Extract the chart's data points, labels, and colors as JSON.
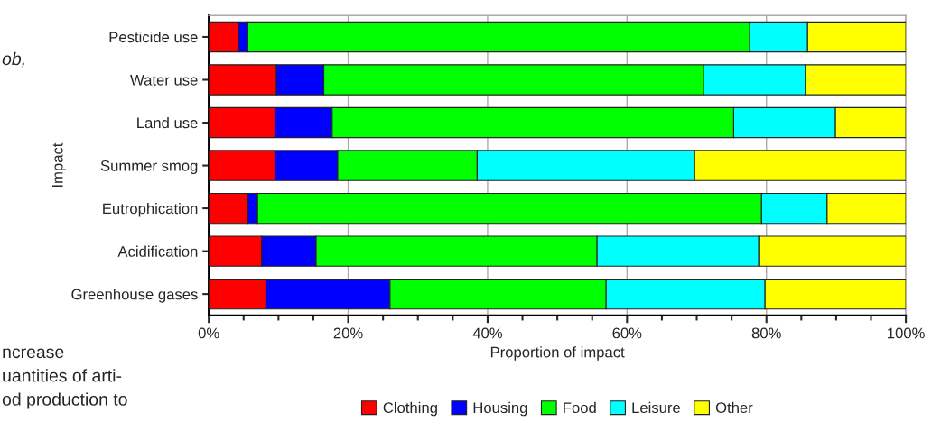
{
  "chart_data": {
    "type": "bar",
    "orientation": "horizontal",
    "stacked": true,
    "categories": [
      "Pesticide use",
      "Water use",
      "Land use",
      "Summer smog",
      "Eutrophication",
      "Acidification",
      "Greenhouse gases"
    ],
    "series": [
      {
        "name": "Clothing",
        "color": "#ff0000",
        "values": [
          4.3,
          9.7,
          9.5,
          9.5,
          5.6,
          7.6,
          8.2
        ]
      },
      {
        "name": "Housing",
        "color": "#0000ff",
        "values": [
          1.3,
          6.8,
          8.2,
          9.0,
          1.4,
          7.8,
          17.8
        ]
      },
      {
        "name": "Food",
        "color": "#00ff00",
        "values": [
          72.0,
          54.5,
          57.6,
          20.0,
          72.3,
          40.3,
          31.0
        ]
      },
      {
        "name": "Leisure",
        "color": "#00ffff",
        "values": [
          8.3,
          14.6,
          14.6,
          31.2,
          9.4,
          23.2,
          22.8
        ]
      },
      {
        "name": "Other",
        "color": "#ffff00",
        "values": [
          14.1,
          14.4,
          10.1,
          30.3,
          11.3,
          21.1,
          20.2
        ]
      }
    ],
    "xlabel": "Proportion of impact",
    "ylabel": "Impact",
    "xlim": [
      0,
      100
    ],
    "xticks": [
      {
        "value": 0,
        "label": "0%"
      },
      {
        "value": 5,
        "label": null
      },
      {
        "value": 10,
        "label": null
      },
      {
        "value": 15,
        "label": null
      },
      {
        "value": 20,
        "label": "20%"
      },
      {
        "value": 25,
        "label": null
      },
      {
        "value": 30,
        "label": null
      },
      {
        "value": 35,
        "label": null
      },
      {
        "value": 40,
        "label": "40%"
      },
      {
        "value": 45,
        "label": null
      },
      {
        "value": 50,
        "label": null
      },
      {
        "value": 55,
        "label": null
      },
      {
        "value": 60,
        "label": "60%"
      },
      {
        "value": 65,
        "label": null
      },
      {
        "value": 70,
        "label": null
      },
      {
        "value": 75,
        "label": null
      },
      {
        "value": 80,
        "label": "80%"
      },
      {
        "value": 85,
        "label": null
      },
      {
        "value": 90,
        "label": null
      },
      {
        "value": 95,
        "label": null
      },
      {
        "value": 100,
        "label": "100%"
      }
    ],
    "grid": "x",
    "legend": "bottom",
    "annotations": [
      "ob,",
      "ncrease",
      "uantities of arti-",
      "od production to"
    ]
  }
}
